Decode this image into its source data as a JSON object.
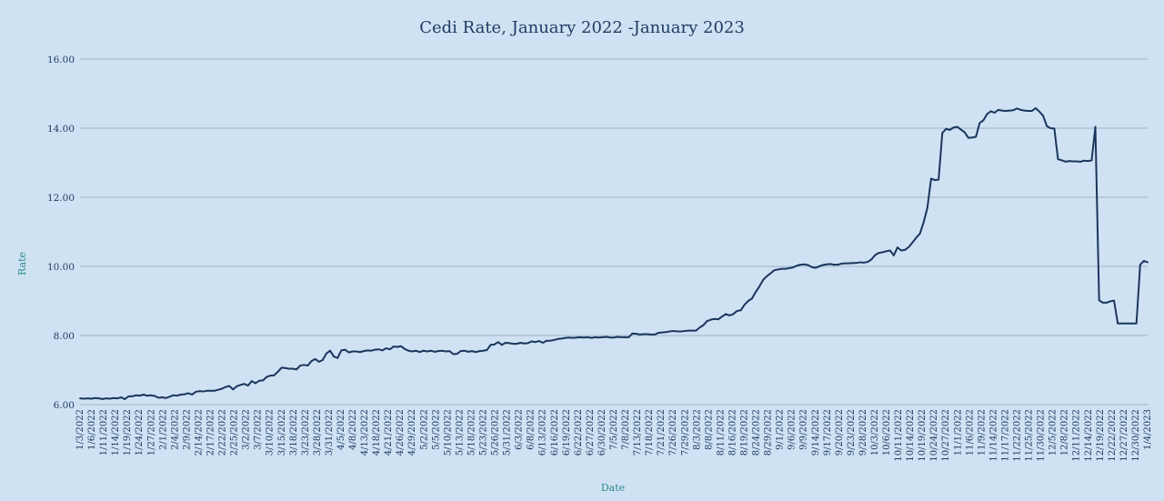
{
  "chart_data": {
    "type": "line",
    "title": "Cedi Rate, January 2022 -January 2023",
    "xlabel": "Date",
    "ylabel": "Rate",
    "ylim": [
      6,
      16
    ],
    "yticks": [
      "6.00",
      "8.00",
      "10.00",
      "12.00",
      "14.00",
      "16.00"
    ],
    "grid": "horizontal",
    "colors": {
      "background": "#cfe2f3",
      "line": "#1b365d",
      "grid": "#9fb3c8",
      "title": "#1f3b63",
      "axis_label": "#2e8b8b"
    },
    "x_tick_labels": [
      "1/3/2022",
      "1/6/2022",
      "1/11/2022",
      "1/14/2022",
      "1/19/2022",
      "1/24/2022",
      "1/27/2022",
      "2/1/2022",
      "2/4/2022",
      "2/9/2022",
      "2/14/2022",
      "2/17/2022",
      "2/22/2022",
      "2/25/2022",
      "3/2/2022",
      "3/7/2022",
      "3/10/2022",
      "3/15/2022",
      "3/18/2022",
      "3/23/2022",
      "3/28/2022",
      "3/31/2022",
      "4/5/2022",
      "4/8/2022",
      "4/13/2022",
      "4/18/2022",
      "4/21/2022",
      "4/26/2022",
      "4/29/2022",
      "5/2/2022",
      "5/5/2022",
      "5/10/2022",
      "5/13/2022",
      "5/18/2022",
      "5/23/2022",
      "5/26/2022",
      "5/31/2022",
      "6/3/2022",
      "6/8/2022",
      "6/13/2022",
      "6/16/2022",
      "6/19/2022",
      "6/22/2022",
      "6/27/2022",
      "6/30/2022",
      "7/5/2022",
      "7/8/2022",
      "7/13/2022",
      "7/18/2022",
      "7/21/2022",
      "7/26/2022",
      "7/29/2022",
      "8/3/2022",
      "8/8/2022",
      "8/11/2022",
      "8/16/2022",
      "8/19/2022",
      "8/24/2022",
      "8/29/2022",
      "9/1/2022",
      "9/6/2022",
      "9/9/2022",
      "9/14/2022",
      "9/17/2022",
      "9/20/2022",
      "9/23/2022",
      "9/28/2022",
      "10/3/2022",
      "10/6/2022",
      "10/11/2022",
      "10/14/2022",
      "10/19/2022",
      "10/24/2022",
      "10/27/2022",
      "11/1/2022",
      "11/6/2022",
      "11/9/2022",
      "11/14/2022",
      "11/17/2022",
      "11/22/2022",
      "11/25/2022",
      "11/30/2022",
      "12/5/2022",
      "12/8/2022",
      "12/11/2022",
      "12/14/2022",
      "12/19/2022",
      "12/22/2022",
      "12/27/2022",
      "12/30/2022",
      "1/4/2023"
    ],
    "series": [
      {
        "values": [
          6.18,
          6.17,
          6.18,
          6.17,
          6.19,
          6.18,
          6.16,
          6.18,
          6.17,
          6.19,
          6.18,
          6.21,
          6.16,
          6.24,
          6.24,
          6.27,
          6.26,
          6.29,
          6.26,
          6.27,
          6.25,
          6.2,
          6.21,
          6.19,
          6.23,
          6.27,
          6.26,
          6.29,
          6.3,
          6.33,
          6.29,
          6.37,
          6.39,
          6.38,
          6.4,
          6.4,
          6.4,
          6.43,
          6.46,
          6.51,
          6.54,
          6.44,
          6.53,
          6.57,
          6.6,
          6.55,
          6.68,
          6.62,
          6.69,
          6.7,
          6.8,
          6.84,
          6.85,
          6.95,
          7.07,
          7.06,
          7.04,
          7.04,
          7.02,
          7.13,
          7.15,
          7.13,
          7.26,
          7.32,
          7.24,
          7.29,
          7.48,
          7.56,
          7.39,
          7.35,
          7.57,
          7.59,
          7.51,
          7.54,
          7.54,
          7.52,
          7.55,
          7.57,
          7.56,
          7.59,
          7.6,
          7.57,
          7.63,
          7.6,
          7.68,
          7.67,
          7.69,
          7.61,
          7.56,
          7.54,
          7.56,
          7.52,
          7.56,
          7.54,
          7.56,
          7.53,
          7.55,
          7.56,
          7.54,
          7.55,
          7.46,
          7.47,
          7.55,
          7.56,
          7.53,
          7.55,
          7.52,
          7.55,
          7.56,
          7.58,
          7.73,
          7.74,
          7.81,
          7.73,
          7.79,
          7.78,
          7.76,
          7.76,
          7.79,
          7.77,
          7.78,
          7.83,
          7.81,
          7.84,
          7.79,
          7.85,
          7.85,
          7.87,
          7.9,
          7.91,
          7.93,
          7.94,
          7.93,
          7.94,
          7.95,
          7.94,
          7.95,
          7.93,
          7.95,
          7.94,
          7.95,
          7.96,
          7.94,
          7.94,
          7.96,
          7.95,
          7.95,
          7.95,
          8.06,
          8.05,
          8.03,
          8.04,
          8.04,
          8.03,
          8.03,
          8.08,
          8.09,
          8.1,
          8.12,
          8.13,
          8.12,
          8.12,
          8.13,
          8.14,
          8.14,
          8.14,
          8.23,
          8.3,
          8.42,
          8.46,
          8.48,
          8.47,
          8.55,
          8.62,
          8.58,
          8.62,
          8.71,
          8.73,
          8.89,
          9.0,
          9.07,
          9.26,
          9.42,
          9.61,
          9.72,
          9.8,
          9.89,
          9.91,
          9.93,
          9.93,
          9.95,
          9.97,
          10.02,
          10.05,
          10.06,
          10.04,
          9.98,
          9.96,
          10.0,
          10.04,
          10.06,
          10.07,
          10.05,
          10.05,
          10.08,
          10.09,
          10.09,
          10.1,
          10.1,
          10.12,
          10.11,
          10.13,
          10.2,
          10.33,
          10.39,
          10.41,
          10.44,
          10.46,
          10.32,
          10.55,
          10.46,
          10.48,
          10.56,
          10.69,
          10.83,
          10.95,
          11.28,
          11.7,
          12.54,
          12.5,
          12.51,
          13.86,
          13.98,
          13.95,
          14.02,
          14.04,
          13.96,
          13.88,
          13.72,
          13.73,
          13.75,
          14.15,
          14.23,
          14.41,
          14.49,
          14.45,
          14.53,
          14.51,
          14.5,
          14.51,
          14.52,
          14.57,
          14.53,
          14.51,
          14.5,
          14.5,
          14.58,
          14.48,
          14.36,
          14.06,
          14.0,
          13.99,
          13.1,
          13.07,
          13.03,
          13.05,
          13.04,
          13.04,
          13.03,
          13.06,
          13.05,
          13.07,
          14.04,
          9.02,
          8.95,
          8.95,
          8.99,
          9.01,
          8.35,
          8.35,
          8.35,
          8.35,
          8.35,
          8.35,
          10.05,
          10.16,
          10.12
        ]
      }
    ]
  }
}
